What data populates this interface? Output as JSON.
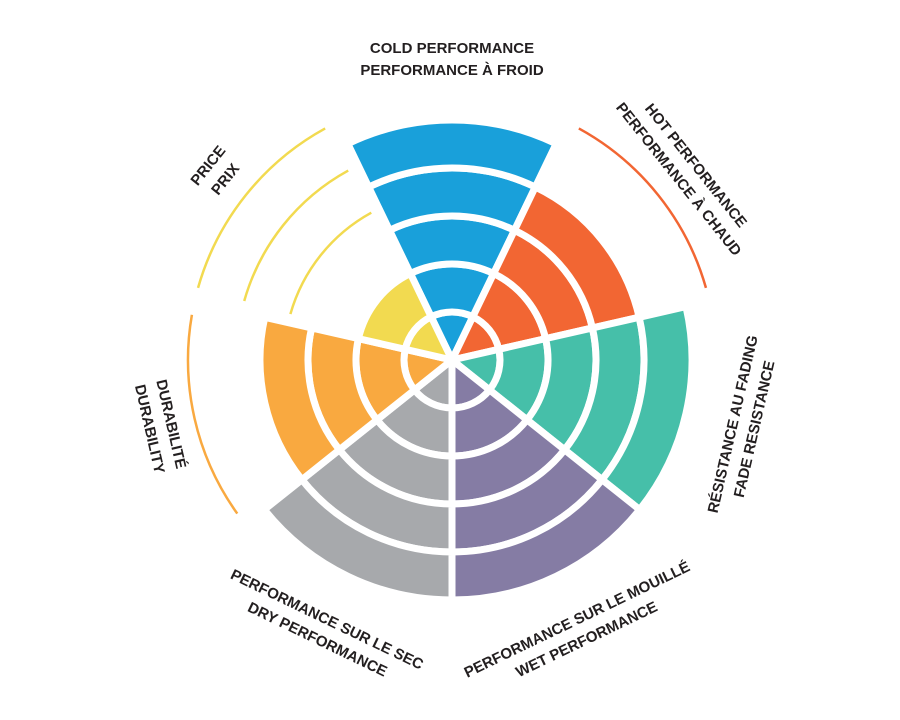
{
  "chart_data": {
    "type": "radial-bar",
    "categories": [
      [
        "COLD PERFORMANCE",
        "PERFORMANCE À FROID"
      ],
      [
        "HOT PERFORMANCE",
        "PERFORMANCE À CHAUD"
      ],
      [
        "RÉSISTANCE AU FADING",
        "FADE RESISTANCE"
      ],
      [
        "PERFORMANCE SUR LE MOUILLÉ",
        "WET PERFORMANCE"
      ],
      [
        "PERFORMANCE SUR LE SEC",
        "DRY PERFORMANCE"
      ],
      [
        "DURABILITÉ",
        "DURABILITY"
      ],
      [
        "PRICE",
        "PRIX"
      ]
    ],
    "values": [
      5,
      4,
      5,
      5,
      5,
      4,
      2
    ],
    "colors": [
      "#19a0da",
      "#f26633",
      "#46bfa9",
      "#857ca4",
      "#a7a9ac",
      "#f9a940",
      "#f2da50"
    ],
    "rlim": [
      0,
      5
    ],
    "rticks": [
      1,
      2,
      3,
      4,
      5
    ]
  }
}
